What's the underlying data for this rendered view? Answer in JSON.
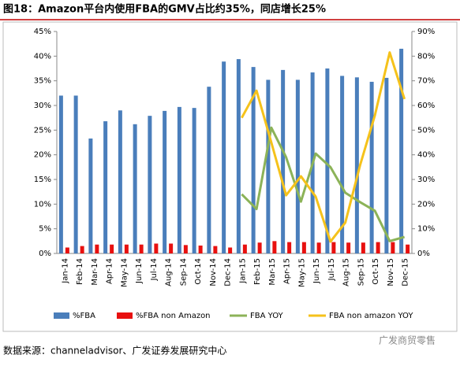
{
  "chart_data": {
    "type": "bar-line",
    "title": "图18：Amazon平台内使用FBA的GMV占比约35%，同店增长25%",
    "source": "数据来源：channeladvisor、广发证券发展研究中心",
    "watermark": "广发商贸零售",
    "categories": [
      "Jan-14",
      "Feb-14",
      "Mar-14",
      "Apr-14",
      "May-14",
      "Jun-14",
      "Jul-14",
      "Aug-14",
      "Sep-14",
      "Oct-14",
      "Nov-14",
      "Dec-14",
      "Jan-15",
      "Feb-15",
      "Mar-15",
      "Apr-15",
      "May-15",
      "Jun-15",
      "Jul-15",
      "Aug-15",
      "Sep-15",
      "Oct-15",
      "Nov-15",
      "Dec-15"
    ],
    "series": [
      {
        "name": "%FBA",
        "type": "bar",
        "color": "#4a7ebb",
        "values": [
          32,
          32,
          23.3,
          26.8,
          29,
          26.2,
          27.9,
          28.9,
          29.7,
          29.5,
          33.8,
          38.9,
          39.4,
          37.8,
          35.2,
          37.2,
          35.2,
          36.7,
          37.5,
          36,
          35.7,
          34.8,
          35.6,
          41.5
        ]
      },
      {
        "name": "%FBA non Amazon",
        "type": "bar",
        "color": "#e8100f",
        "values": [
          1.2,
          1.5,
          1.8,
          1.8,
          1.8,
          1.8,
          2,
          2,
          1.7,
          1.6,
          1.5,
          1.2,
          1.8,
          2.2,
          2.5,
          2.3,
          2.3,
          2.2,
          2.3,
          2.2,
          2.2,
          2.3,
          2.3,
          1.8
        ]
      },
      {
        "name": "FBA YOY",
        "type": "line",
        "axis": "y2",
        "color": "#8cb358",
        "values": [
          null,
          null,
          null,
          null,
          null,
          null,
          null,
          null,
          null,
          null,
          null,
          null,
          24,
          18,
          51,
          39,
          21,
          40.5,
          35,
          24.6,
          20.8,
          17.3,
          5,
          6.7
        ]
      },
      {
        "name": "FBA non amazon YOY",
        "type": "line",
        "axis": "y2",
        "color": "#f5c21b",
        "values": [
          null,
          null,
          null,
          null,
          null,
          null,
          null,
          null,
          null,
          null,
          null,
          null,
          55,
          66,
          45,
          23.6,
          31.3,
          23,
          4.8,
          12.5,
          35.8,
          56,
          81.5,
          62.6
        ]
      }
    ],
    "ylim": [
      0,
      45
    ],
    "yticks": [
      {
        "value": 0,
        "label": "0%"
      },
      {
        "value": 5,
        "label": "5%"
      },
      {
        "value": 10,
        "label": "10%"
      },
      {
        "value": 15,
        "label": "15%"
      },
      {
        "value": 20,
        "label": "20%"
      },
      {
        "value": 25,
        "label": "25%"
      },
      {
        "value": 30,
        "label": "30%"
      },
      {
        "value": 35,
        "label": "35%"
      },
      {
        "value": 40,
        "label": "40%"
      },
      {
        "value": 45,
        "label": "45%"
      }
    ],
    "y2lim": [
      0,
      90
    ],
    "y2ticks": [
      {
        "value": 0,
        "label": "0%"
      },
      {
        "value": 10,
        "label": "10%"
      },
      {
        "value": 20,
        "label": "20%"
      },
      {
        "value": 30,
        "label": "30%"
      },
      {
        "value": 40,
        "label": "40%"
      },
      {
        "value": 50,
        "label": "50%"
      },
      {
        "value": 60,
        "label": "60%"
      },
      {
        "value": 70,
        "label": "70%"
      },
      {
        "value": 80,
        "label": "80%"
      },
      {
        "value": 90,
        "label": "90%"
      }
    ],
    "legend": "bottom"
  }
}
